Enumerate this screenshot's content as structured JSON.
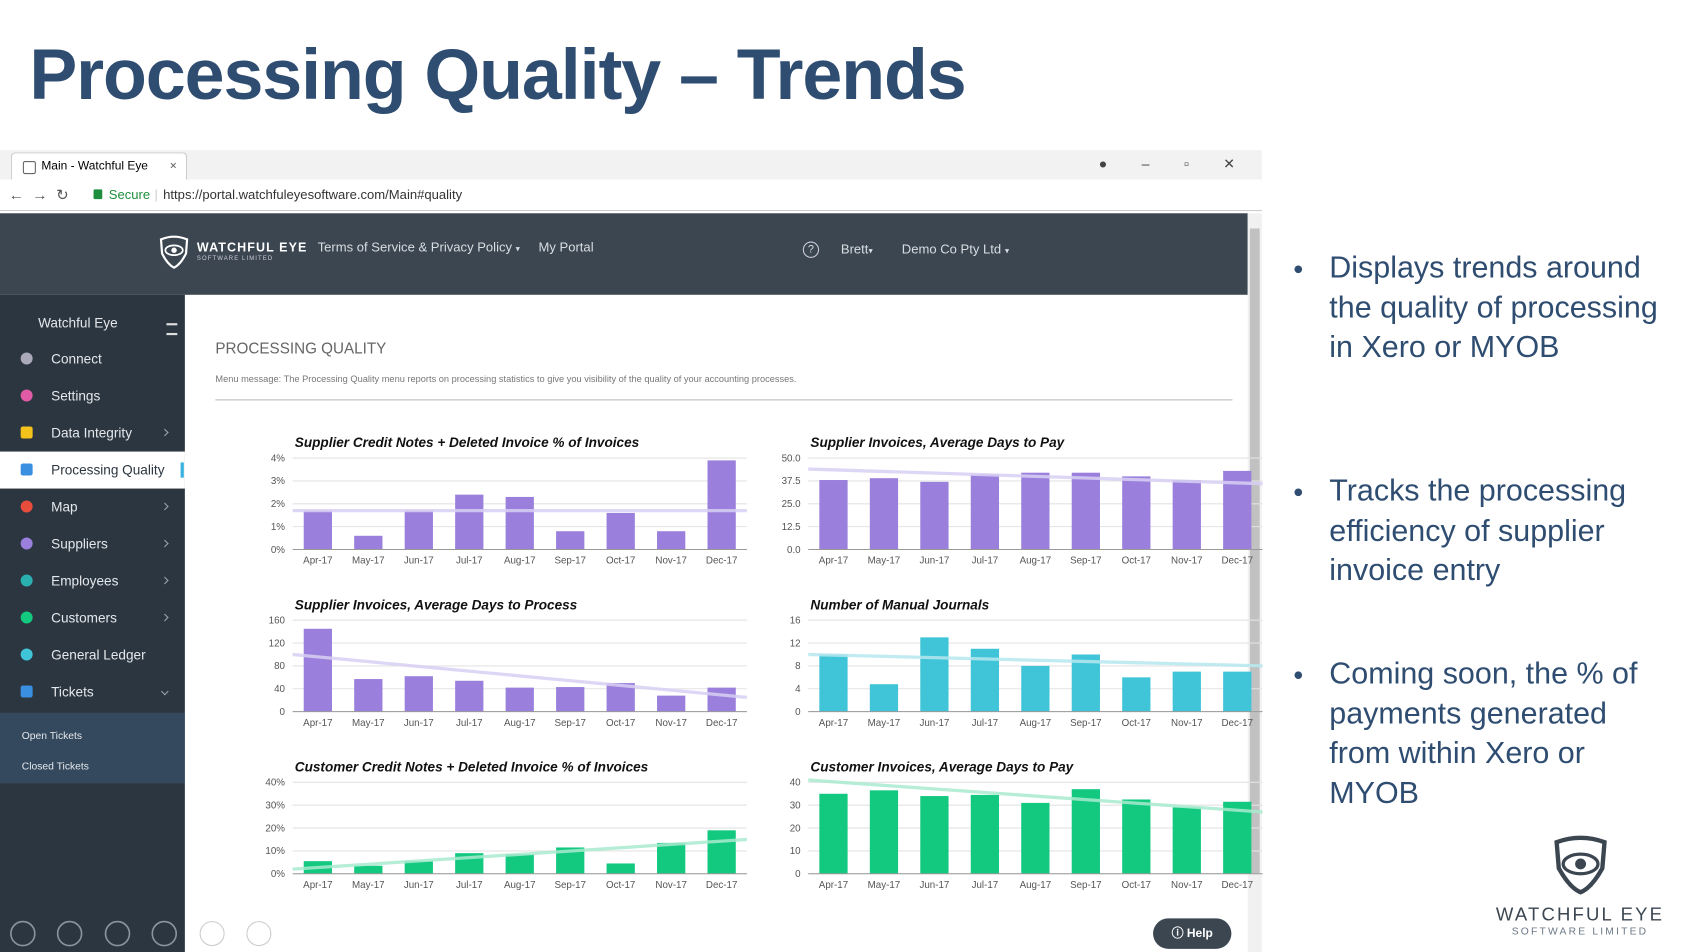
{
  "slide": {
    "title": "Processing Quality – Trends",
    "bullets": [
      "Displays trends around the quality of processing in Xero or MYOB",
      "Tracks the processing efficiency of supplier invoice entry",
      "Coming soon, the % of payments generated from within Xero or MYOB"
    ]
  },
  "browser": {
    "tab": "Main - Watchful Eye",
    "secure": "Secure",
    "url": "https://portal.watchfuleyesoftware.com/Main#quality"
  },
  "app": {
    "brand": "WATCHFUL EYE",
    "brand_sub": "SOFTWARE LIMITED",
    "nav": [
      "Terms of Service & Privacy Policy",
      "My Portal"
    ],
    "user": "Brett",
    "company": "Demo Co Pty Ltd",
    "sidebar_title": "Watchful Eye",
    "menu": [
      "Connect",
      "Settings",
      "Data Integrity",
      "Processing Quality",
      "Map",
      "Suppliers",
      "Employees",
      "Customers",
      "General Ledger",
      "Tickets"
    ],
    "submenu": [
      "Open Tickets",
      "Closed Tickets"
    ],
    "help": "Help"
  },
  "page": {
    "heading": "PROCESSING QUALITY",
    "message": "Menu message: The Processing Quality menu reports on processing statistics to give you visibility of the quality of your accounting processes."
  },
  "chart_data": [
    {
      "type": "bar",
      "title": "Supplier Credit Notes + Deleted Invoice % of Invoices",
      "categories": [
        "Apr-17",
        "May-17",
        "Jun-17",
        "Jul-17",
        "Aug-17",
        "Sep-17",
        "Oct-17",
        "Nov-17",
        "Dec-17"
      ],
      "values": [
        1.7,
        0.6,
        1.7,
        2.4,
        2.3,
        0.8,
        1.6,
        0.8,
        3.9
      ],
      "trend": [
        1.7,
        1.7
      ],
      "color": "#9a7fdc",
      "trend_color": "#d8cff3",
      "ylim": [
        0,
        4
      ],
      "yticks": [
        {
          "value": 0,
          "label": "0%"
        },
        {
          "value": 1,
          "label": "1%"
        },
        {
          "value": 2,
          "label": "2%"
        },
        {
          "value": 3,
          "label": "3%"
        },
        {
          "value": 4,
          "label": "4%"
        }
      ]
    },
    {
      "type": "bar",
      "title": "Supplier Invoices, Average Days to Pay",
      "categories": [
        "Apr-17",
        "May-17",
        "Jun-17",
        "Jul-17",
        "Aug-17",
        "Sep-17",
        "Oct-17",
        "Nov-17",
        "Dec-17"
      ],
      "values": [
        38,
        39,
        37,
        41,
        42,
        42,
        40,
        38,
        43
      ],
      "trend": [
        44,
        36
      ],
      "color": "#9a7fdc",
      "trend_color": "#d8cff3",
      "ylim": [
        0,
        50
      ],
      "yticks": [
        {
          "value": 0,
          "label": "0.0"
        },
        {
          "value": 12.5,
          "label": "12.5"
        },
        {
          "value": 25,
          "label": "25.0"
        },
        {
          "value": 37.5,
          "label": "37.5"
        },
        {
          "value": 50,
          "label": "50.0"
        }
      ]
    },
    {
      "type": "bar",
      "title": "Supplier Invoices, Average Days to Process",
      "categories": [
        "Apr-17",
        "May-17",
        "Jun-17",
        "Jul-17",
        "Aug-17",
        "Sep-17",
        "Oct-17",
        "Nov-17",
        "Dec-17"
      ],
      "values": [
        145,
        57,
        62,
        54,
        42,
        43,
        50,
        28,
        42
      ],
      "trend": [
        100,
        25
      ],
      "color": "#9a7fdc",
      "trend_color": "#d8cff3",
      "ylim": [
        0,
        160
      ],
      "yticks": [
        0,
        40,
        80,
        120,
        160
      ]
    },
    {
      "type": "bar",
      "title": "Number of Manual Journals",
      "categories": [
        "Apr-17",
        "May-17",
        "Jun-17",
        "Jul-17",
        "Aug-17",
        "Sep-17",
        "Oct-17",
        "Nov-17",
        "Dec-17"
      ],
      "values": [
        10,
        4.8,
        13,
        11,
        8,
        10,
        6,
        7,
        7
      ],
      "trend": [
        10,
        8
      ],
      "color": "#40c4d8",
      "trend_color": "#b5e8ef",
      "ylim": [
        0,
        16
      ],
      "yticks": [
        0,
        4,
        8,
        12,
        16
      ]
    },
    {
      "type": "bar",
      "title": "Customer Credit Notes + Deleted Invoice % of Invoices",
      "categories": [
        "Apr-17",
        "May-17",
        "Jun-17",
        "Jul-17",
        "Aug-17",
        "Sep-17",
        "Oct-17",
        "Nov-17",
        "Dec-17"
      ],
      "values": [
        5.5,
        3.5,
        5.5,
        9,
        8.5,
        11.5,
        4.5,
        13.5,
        19
      ],
      "trend": [
        2,
        15
      ],
      "color": "#12c97f",
      "trend_color": "#a8eacf",
      "ylim": [
        0,
        40
      ],
      "yticks": [
        {
          "value": 0,
          "label": "0%"
        },
        {
          "value": 10,
          "label": "10%"
        },
        {
          "value": 20,
          "label": "20%"
        },
        {
          "value": 30,
          "label": "30%"
        },
        {
          "value": 40,
          "label": "40%"
        }
      ]
    },
    {
      "type": "bar",
      "title": "Customer Invoices, Average Days to Pay",
      "categories": [
        "Apr-17",
        "May-17",
        "Jun-17",
        "Jul-17",
        "Aug-17",
        "Sep-17",
        "Oct-17",
        "Nov-17",
        "Dec-17"
      ],
      "values": [
        35,
        36.5,
        34,
        34.5,
        31,
        37,
        32.5,
        29,
        31.5
      ],
      "trend": [
        41,
        27
      ],
      "color": "#12c97f",
      "trend_color": "#a8eacf",
      "ylim": [
        0,
        40
      ],
      "yticks": [
        0,
        10,
        20,
        30,
        40
      ]
    }
  ]
}
